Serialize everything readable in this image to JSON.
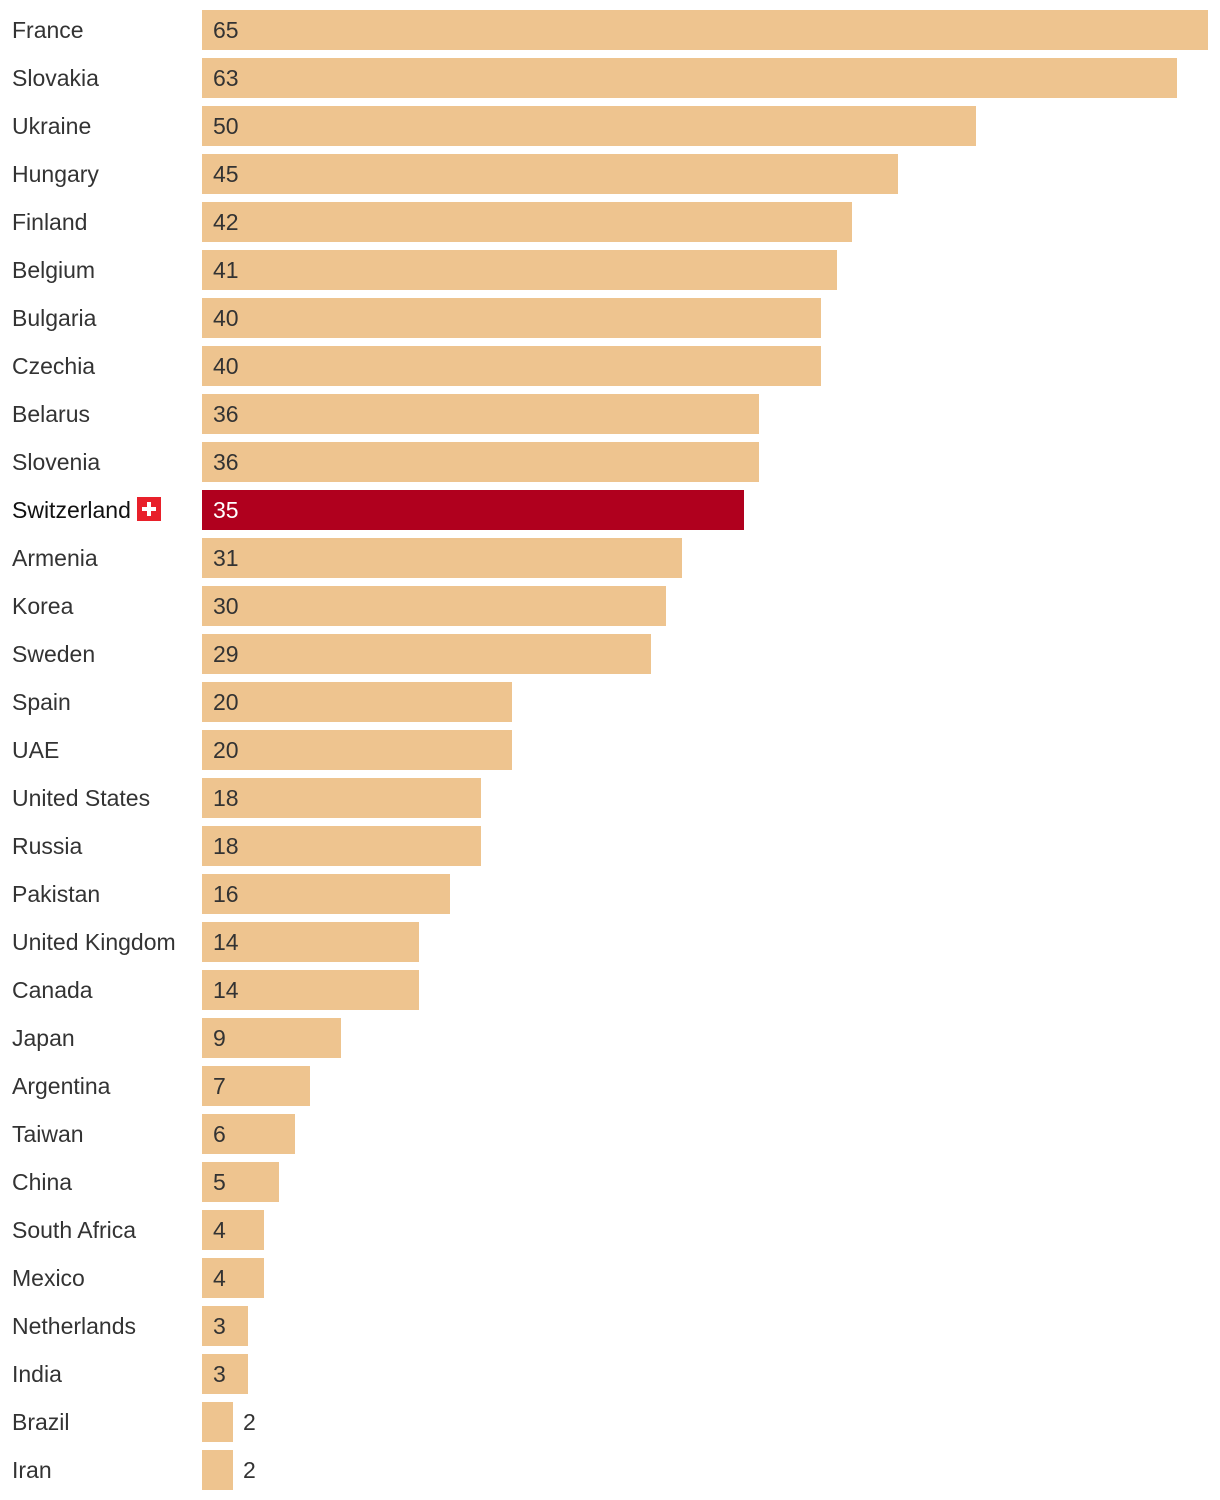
{
  "colors": {
    "bar": "#EEC48F",
    "highlight_bar": "#B0001E",
    "flag": "#E8202A",
    "label_text": "#333333"
  },
  "chart_data": {
    "type": "bar",
    "orientation": "horizontal",
    "title": "",
    "xlabel": "",
    "ylabel": "",
    "xlim": [
      0,
      65
    ],
    "highlight": "Switzerland",
    "categories": [
      "France",
      "Slovakia",
      "Ukraine",
      "Hungary",
      "Finland",
      "Belgium",
      "Bulgaria",
      "Czechia",
      "Belarus",
      "Slovenia",
      "Switzerland",
      "Armenia",
      "Korea",
      "Sweden",
      "Spain",
      "UAE",
      "United States",
      "Russia",
      "Pakistan",
      "United Kingdom",
      "Canada",
      "Japan",
      "Argentina",
      "Taiwan",
      "China",
      "South Africa",
      "Mexico",
      "Netherlands",
      "India",
      "Brazil",
      "Iran"
    ],
    "values": [
      65,
      63,
      50,
      45,
      42,
      41,
      40,
      40,
      36,
      36,
      35,
      31,
      30,
      29,
      20,
      20,
      18,
      18,
      16,
      14,
      14,
      9,
      7,
      6,
      5,
      4,
      4,
      3,
      3,
      2,
      2
    ]
  }
}
